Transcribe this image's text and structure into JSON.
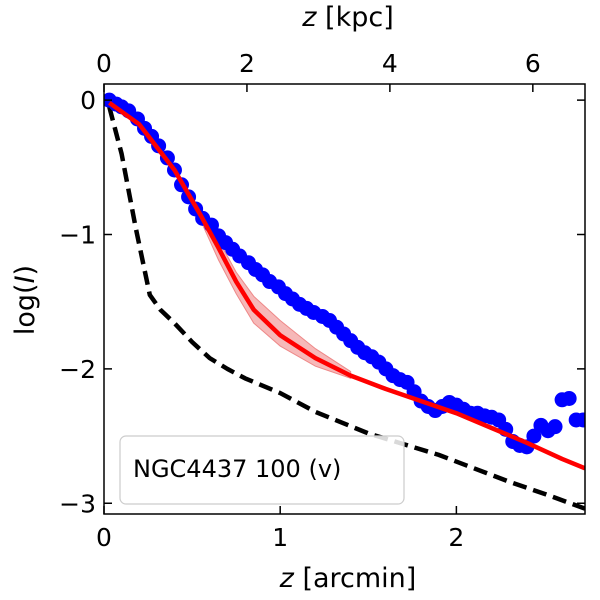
{
  "chart_data": {
    "type": "line",
    "xlabel_italic": "z",
    "xlabel_unit": " [arcmin]",
    "top_xlabel_italic": "z",
    "top_xlabel_unit": " [kpc]",
    "ylabel_pre": "log(",
    "ylabel_italic": "I",
    "ylabel_post": ")",
    "xlim": [
      0,
      2.73
    ],
    "ylim": [
      -3.08,
      0.12
    ],
    "top_xlim": [
      0,
      6.73
    ],
    "x_ticks": [
      0,
      1,
      2
    ],
    "x_tick_labels": [
      "0",
      "1",
      "2"
    ],
    "y_ticks": [
      0,
      -1,
      -2,
      -3
    ],
    "y_tick_labels": [
      "0",
      "−1",
      "−2",
      "−3"
    ],
    "top_ticks": [
      0,
      2,
      4,
      6
    ],
    "top_tick_labels": [
      "0",
      "2",
      "4",
      "6"
    ],
    "legend_label": "NGC4437 100 (v)",
    "legend_position": "lower-left",
    "colors": {
      "observed": "#0000ff",
      "model": "#ff0000",
      "band": "#f4a6a6",
      "psf": "#000000"
    },
    "series": [
      {
        "name": "observed",
        "style": "markers",
        "points": [
          [
            0.03,
            0.0
          ],
          [
            0.07,
            -0.03
          ],
          [
            0.1,
            -0.05
          ],
          [
            0.14,
            -0.08
          ],
          [
            0.19,
            -0.14
          ],
          [
            0.23,
            -0.21
          ],
          [
            0.27,
            -0.27
          ],
          [
            0.31,
            -0.34
          ],
          [
            0.36,
            -0.43
          ],
          [
            0.4,
            -0.52
          ],
          [
            0.44,
            -0.63
          ],
          [
            0.48,
            -0.72
          ],
          [
            0.52,
            -0.81
          ],
          [
            0.56,
            -0.88
          ],
          [
            0.61,
            -0.93
          ],
          [
            0.65,
            -1.01
          ],
          [
            0.69,
            -1.06
          ],
          [
            0.73,
            -1.11
          ],
          [
            0.77,
            -1.16
          ],
          [
            0.82,
            -1.21
          ],
          [
            0.86,
            -1.26
          ],
          [
            0.9,
            -1.3
          ],
          [
            0.94,
            -1.35
          ],
          [
            0.99,
            -1.39
          ],
          [
            1.03,
            -1.44
          ],
          [
            1.07,
            -1.48
          ],
          [
            1.11,
            -1.52
          ],
          [
            1.15,
            -1.55
          ],
          [
            1.19,
            -1.58
          ],
          [
            1.24,
            -1.61
          ],
          [
            1.28,
            -1.64
          ],
          [
            1.32,
            -1.69
          ],
          [
            1.36,
            -1.74
          ],
          [
            1.4,
            -1.79
          ],
          [
            1.44,
            -1.84
          ],
          [
            1.48,
            -1.88
          ],
          [
            1.52,
            -1.91
          ],
          [
            1.56,
            -1.95
          ],
          [
            1.6,
            -2.0
          ],
          [
            1.64,
            -2.05
          ],
          [
            1.68,
            -2.08
          ],
          [
            1.72,
            -2.1
          ],
          [
            1.76,
            -2.17
          ],
          [
            1.8,
            -2.24
          ],
          [
            1.84,
            -2.28
          ],
          [
            1.88,
            -2.31
          ],
          [
            1.92,
            -2.28
          ],
          [
            1.96,
            -2.25
          ],
          [
            2.0,
            -2.27
          ],
          [
            2.04,
            -2.3
          ],
          [
            2.08,
            -2.33
          ],
          [
            2.12,
            -2.33
          ],
          [
            2.16,
            -2.35
          ],
          [
            2.2,
            -2.36
          ],
          [
            2.24,
            -2.38
          ],
          [
            2.28,
            -2.45
          ],
          [
            2.32,
            -2.54
          ],
          [
            2.36,
            -2.57
          ],
          [
            2.4,
            -2.58
          ],
          [
            2.44,
            -2.5
          ],
          [
            2.48,
            -2.42
          ],
          [
            2.52,
            -2.46
          ],
          [
            2.56,
            -2.43
          ],
          [
            2.6,
            -2.23
          ],
          [
            2.64,
            -2.22
          ],
          [
            2.68,
            -2.38
          ],
          [
            2.72,
            -2.38
          ]
        ]
      },
      {
        "name": "model",
        "style": "solid",
        "points": [
          [
            0.03,
            -0.02
          ],
          [
            0.2,
            -0.18
          ],
          [
            0.4,
            -0.52
          ],
          [
            0.55,
            -0.86
          ],
          [
            0.65,
            -1.1
          ],
          [
            0.75,
            -1.35
          ],
          [
            0.85,
            -1.56
          ],
          [
            1.0,
            -1.75
          ],
          [
            1.2,
            -1.92
          ],
          [
            1.4,
            -2.05
          ],
          [
            1.6,
            -2.15
          ],
          [
            1.8,
            -2.24
          ],
          [
            2.0,
            -2.33
          ],
          [
            2.2,
            -2.44
          ],
          [
            2.4,
            -2.55
          ],
          [
            2.6,
            -2.67
          ],
          [
            2.73,
            -2.74
          ]
        ]
      },
      {
        "name": "model-uncertainty",
        "style": "band",
        "x": [
          0.55,
          0.65,
          0.75,
          0.85,
          1.0,
          1.2,
          1.4
        ],
        "upper": [
          -0.84,
          -1.04,
          -1.28,
          -1.46,
          -1.64,
          -1.85,
          -2.02
        ],
        "lower": [
          -0.9,
          -1.19,
          -1.44,
          -1.66,
          -1.83,
          -1.98,
          -2.07
        ]
      },
      {
        "name": "psf",
        "style": "dashed",
        "points": [
          [
            0.03,
            -0.05
          ],
          [
            0.1,
            -0.4
          ],
          [
            0.18,
            -0.95
          ],
          [
            0.26,
            -1.45
          ],
          [
            0.32,
            -1.56
          ],
          [
            0.4,
            -1.66
          ],
          [
            0.5,
            -1.8
          ],
          [
            0.6,
            -1.92
          ],
          [
            0.7,
            -2.0
          ],
          [
            0.8,
            -2.07
          ],
          [
            1.0,
            -2.18
          ],
          [
            1.2,
            -2.32
          ],
          [
            1.5,
            -2.48
          ],
          [
            1.7,
            -2.56
          ],
          [
            1.9,
            -2.64
          ],
          [
            2.1,
            -2.74
          ],
          [
            2.3,
            -2.84
          ],
          [
            2.5,
            -2.93
          ],
          [
            2.73,
            -3.04
          ]
        ]
      }
    ]
  }
}
